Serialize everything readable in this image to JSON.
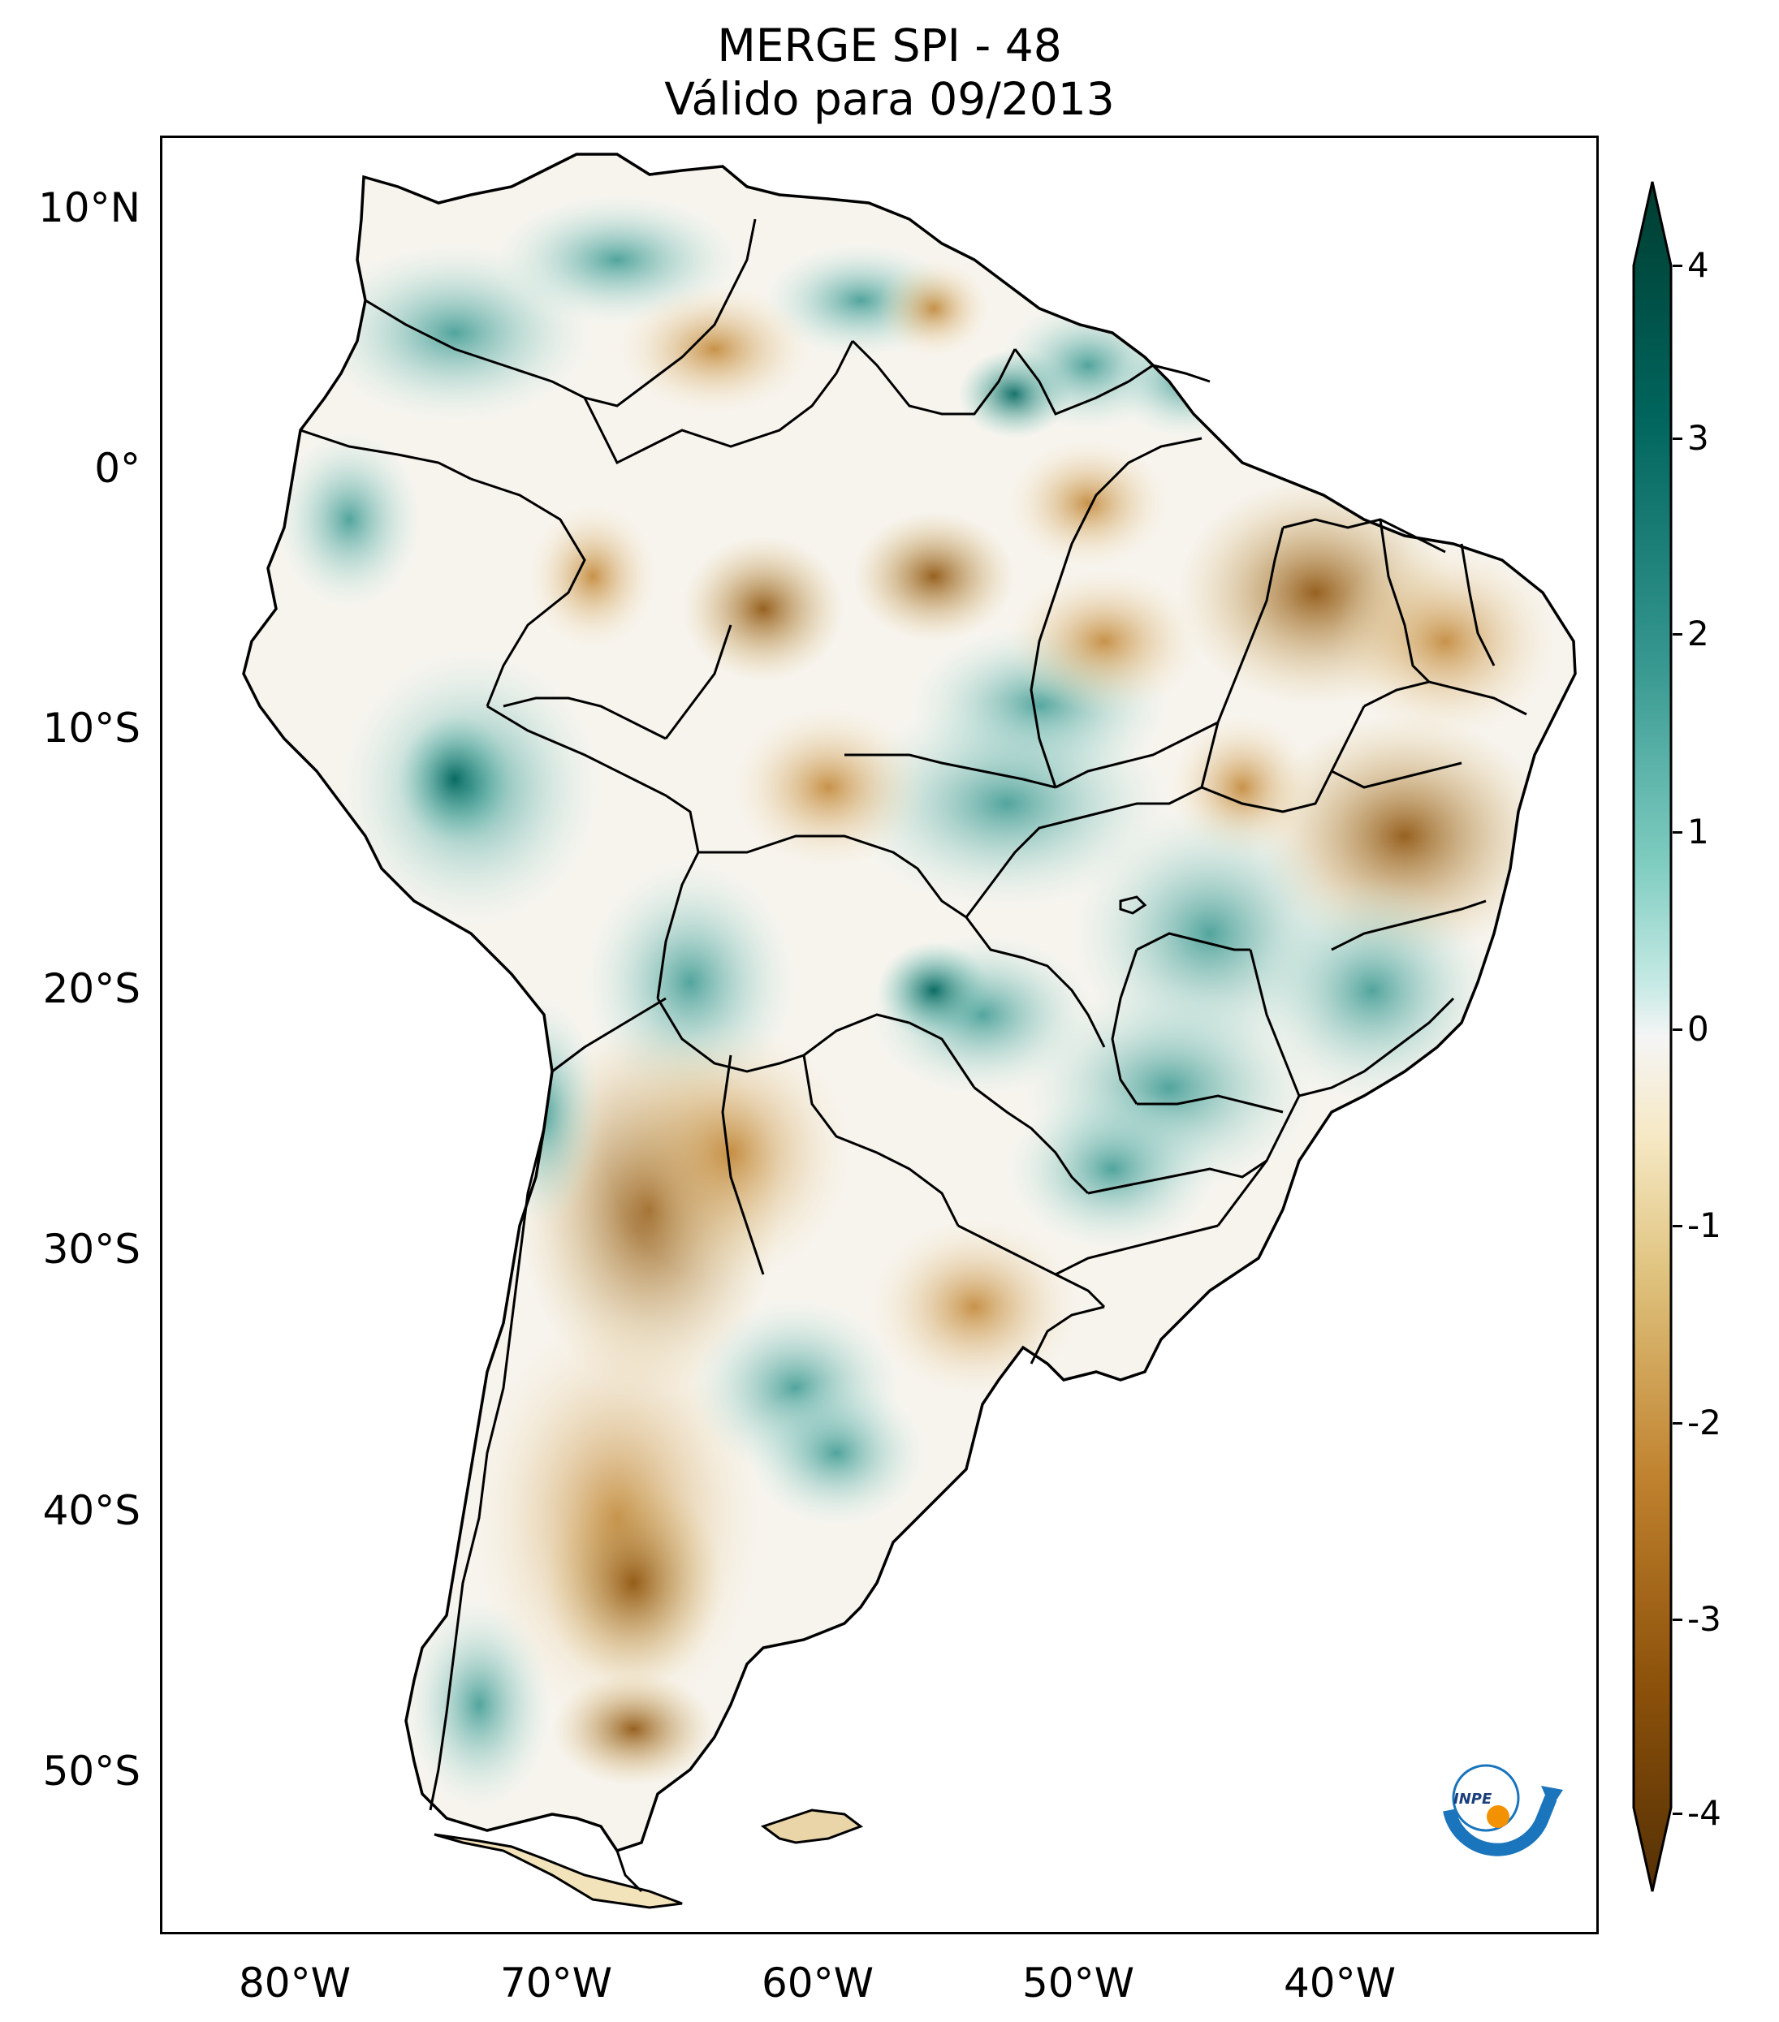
{
  "title": {
    "line1": "MERGE   SPI - 48",
    "line2": "Válido para 09/2013"
  },
  "map": {
    "region": "South America",
    "variable": "SPI - 48",
    "lon_labels": [
      "80°W",
      "70°W",
      "60°W",
      "50°W",
      "40°W"
    ],
    "lat_labels": [
      "10°N",
      "0°",
      "10°S",
      "20°S",
      "30°S",
      "40°S",
      "50°S"
    ]
  },
  "colorbar": {
    "ticks": [
      "4",
      "3",
      "2",
      "1",
      "0",
      "-1",
      "-2",
      "-3",
      "-4"
    ],
    "colors": {
      "wet_max": "#003c30",
      "wet_mid": "#35978f",
      "wet_light": "#c7eae5",
      "neutral": "#f5f5f5",
      "dry_light": "#f6e8c3",
      "dry_mid": "#bf812d",
      "dry_max": "#543005"
    }
  },
  "logo": {
    "text": "INPE",
    "icon": "inpe-logo-icon"
  }
}
